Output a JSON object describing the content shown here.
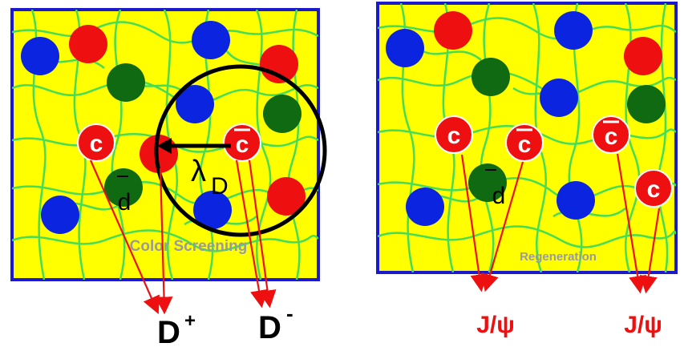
{
  "left_panel": {
    "caption": "Color Screening",
    "charm_label": "c",
    "anticharm_label": "c",
    "antiquark_label": "d",
    "debye_label": "λ",
    "debye_subscript": "D",
    "products": [
      {
        "base": "D",
        "sup": "+"
      },
      {
        "base": "D",
        "sup": "-"
      }
    ]
  },
  "right_panel": {
    "caption": "Regeneration",
    "charm_label": "c",
    "anticharm_label": "c",
    "antiquark_label": "d",
    "products": [
      "J/ψ",
      "J/ψ"
    ]
  },
  "colors": {
    "background": "#ffff00",
    "border": "#1a1acc",
    "gluon": "#44dd55",
    "quark_blue": "#0a24e0",
    "quark_red": "#ee1010",
    "quark_green": "#0f6a12",
    "arrow": "#ee1010",
    "jpsi_text": "#ee1010"
  }
}
